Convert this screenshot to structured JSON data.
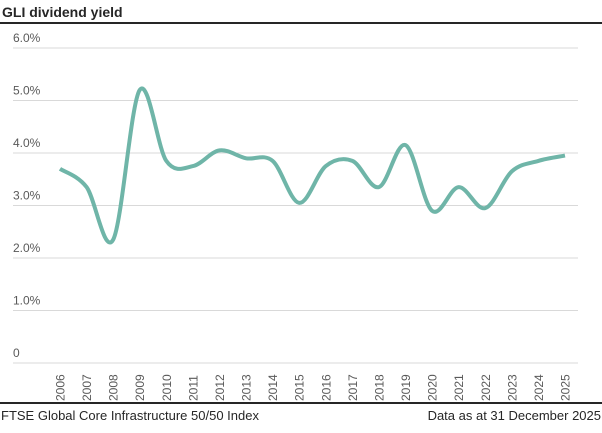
{
  "title": "GLI dividend yield",
  "footer": {
    "source": "FTSE Global Core Infrastructure 50/50 Index",
    "date_note": "Data as at 31 December 2025"
  },
  "chart_data": {
    "type": "line",
    "title": "GLI dividend yield",
    "x": [
      2006,
      2007,
      2008,
      2009,
      2010,
      2011,
      2012,
      2013,
      2014,
      2015,
      2016,
      2017,
      2018,
      2019,
      2020,
      2021,
      2022,
      2023,
      2024,
      2025
    ],
    "series": [
      {
        "name": "GLI dividend yield",
        "values": [
          3.7,
          3.35,
          2.35,
          5.2,
          3.85,
          3.75,
          4.05,
          3.9,
          3.85,
          3.05,
          3.75,
          3.85,
          3.35,
          4.15,
          2.9,
          3.35,
          2.95,
          3.65,
          3.85,
          3.95
        ]
      }
    ],
    "ylim": [
      0,
      6
    ],
    "ytick_values": [
      6,
      5,
      4,
      3,
      2,
      1,
      0
    ],
    "ytick_labels": [
      "6.0%",
      "5.0%",
      "4.0%",
      "3.0%",
      "2.0%",
      "1.0%",
      "0"
    ],
    "xlabel": "",
    "ylabel": "",
    "grid": "horizontal",
    "legend_position": "none",
    "line_color": "#6FB5A8",
    "grid_color": "#D9D9D9",
    "axis_text_color": "#595959",
    "rule_color": "#262626",
    "line_smoothing": "spline"
  }
}
